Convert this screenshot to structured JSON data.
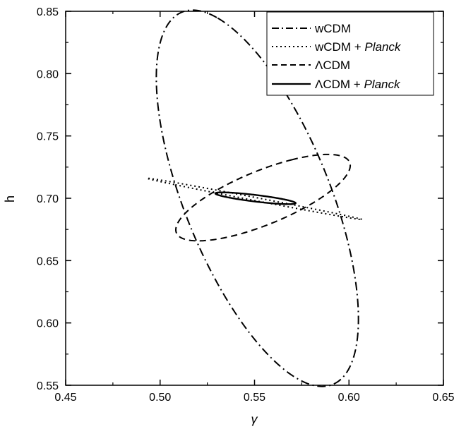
{
  "chart_data": {
    "type": "line",
    "xlabel": "γ",
    "ylabel": "h",
    "xlim": [
      0.45,
      0.65
    ],
    "ylim": [
      0.55,
      0.85
    ],
    "xticks": [
      "0.45",
      "0.50",
      "0.55",
      "0.60",
      "0.65"
    ],
    "yticks": [
      "0.55",
      "0.60",
      "0.65",
      "0.70",
      "0.75",
      "0.80",
      "0.85"
    ],
    "legend_position": "top-right",
    "series": [
      {
        "name": "wCDM",
        "style": "dash-dot",
        "ellipse": {
          "center": [
            0.5515,
            0.7
          ],
          "points": [
            [
              0.53,
              0.845
            ],
            [
              0.5715,
              0.555
            ],
            [
              0.5025,
              0.742
            ],
            [
              0.6005,
              0.652
            ]
          ]
        }
      },
      {
        "name": "wCDM + Planck",
        "style": "dotted",
        "ellipse": {
          "center": [
            0.55,
            0.6995
          ],
          "points": [
            [
              0.5075,
              0.711
            ],
            [
              0.5925,
              0.688
            ],
            [
              0.512,
              0.7115
            ],
            [
              0.588,
              0.6875
            ]
          ]
        }
      },
      {
        "name": "ΛCDM",
        "style": "dashed",
        "ellipse": {
          "center": [
            0.5545,
            0.7005
          ],
          "points": [
            [
              0.57,
              0.731
            ],
            [
              0.538,
              0.67
            ],
            [
              0.511,
              0.684
            ],
            [
              0.598,
              0.717
            ]
          ]
        }
      },
      {
        "name": "ΛCDM + Planck",
        "style": "solid",
        "ellipse": {
          "center": [
            0.5505,
            0.7
          ],
          "points": [
            [
              0.531,
              0.7025
            ],
            [
              0.57,
              0.6975
            ],
            [
              0.542,
              0.704
            ],
            [
              0.559,
              0.696
            ]
          ]
        }
      }
    ]
  },
  "legend": {
    "items": [
      {
        "main": "wCDM",
        "suffix": ""
      },
      {
        "main": "wCDM + ",
        "suffix": "Planck"
      },
      {
        "main": "ΛCDM",
        "suffix": ""
      },
      {
        "main": "ΛCDM + ",
        "suffix": "Planck"
      }
    ]
  }
}
